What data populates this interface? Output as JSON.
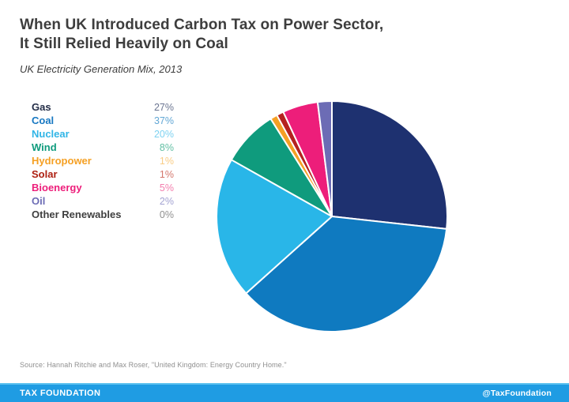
{
  "header": {
    "title_line1": "When UK Introduced Carbon Tax on Power Sector,",
    "title_line2": "It Still Relied Heavily on Coal",
    "subtitle": "UK Electricity Generation Mix, 2013"
  },
  "legend": {
    "items": [
      {
        "label": "Gas",
        "value": "27%",
        "label_color": "#232d47",
        "value_color": "#6b7591"
      },
      {
        "label": "Coal",
        "value": "37%",
        "label_color": "#1878c2",
        "value_color": "#62a7d5"
      },
      {
        "label": "Nuclear",
        "value": "20%",
        "label_color": "#30b5e6",
        "value_color": "#7ed2f1"
      },
      {
        "label": "Wind",
        "value": "8%",
        "label_color": "#0f9b7d",
        "value_color": "#62bfa4"
      },
      {
        "label": "Hydropower",
        "value": "1%",
        "label_color": "#f5a024",
        "value_color": "#f9cd86"
      },
      {
        "label": "Solar",
        "value": "1%",
        "label_color": "#ae2012",
        "value_color": "#d4776d"
      },
      {
        "label": "Bioenergy",
        "value": "5%",
        "label_color": "#ed1e7a",
        "value_color": "#f37fae"
      },
      {
        "label": "Oil",
        "value": "2%",
        "label_color": "#6c6cb5",
        "value_color": "#a3a3d2"
      },
      {
        "label": "Other Renewables",
        "value": "0%",
        "label_color": "#3f3f3f",
        "value_color": "#909090"
      }
    ]
  },
  "chart_data": {
    "type": "pie",
    "title": "When UK Introduced Carbon Tax on Power Sector, It Still Relied Heavily on Coal",
    "subtitle": "UK Electricity Generation Mix, 2013",
    "categories": [
      "Gas",
      "Coal",
      "Nuclear",
      "Wind",
      "Hydropower",
      "Solar",
      "Bioenergy",
      "Oil",
      "Other Renewables"
    ],
    "values": [
      27,
      37,
      20,
      8,
      1,
      1,
      5,
      2,
      0
    ],
    "unit": "percent",
    "colors": [
      "#1e3170",
      "#0f7ac0",
      "#29b6e8",
      "#0f9b7d",
      "#f5a024",
      "#b5221f",
      "#ed1e7a",
      "#6c6cb5",
      "#3f3f3f"
    ],
    "start_angle_deg": 0,
    "direction": "clockwise",
    "slice_stroke_color": "#ffffff",
    "legend_position": "left"
  },
  "source": {
    "text": "Source: Hannah Ritchie and Max Roser, \"United Kingdom: Energy Country Home.\""
  },
  "footer": {
    "brand": "TAX FOUNDATION",
    "handle": "@TaxFoundation",
    "bar_color": "#1f9ce3",
    "bar_top_color": "#5fc3f0"
  }
}
